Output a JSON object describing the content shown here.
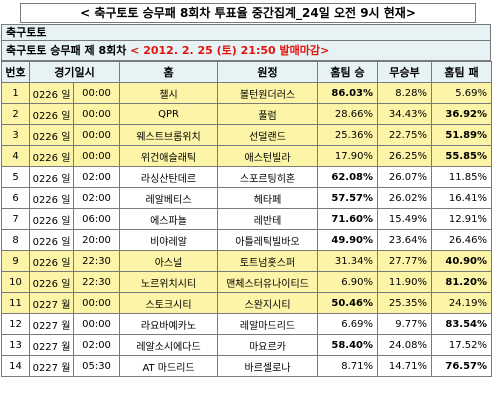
{
  "page": {
    "title": "< 축구토토 승무패 8회차 투표율 중간집계_24일 오전 9시 현재>",
    "section": "축구토토",
    "subheader_prefix": "축구토토 승무패 제 8회차 ",
    "subheader_highlight": "< 2012. 2. 25 (토) 21:50 발매마감>"
  },
  "table": {
    "headers": [
      "번호",
      "경기일시",
      "홈",
      "원정",
      "홈팀 승",
      "무승부",
      "홈팀 패"
    ],
    "rows": [
      {
        "no": "1",
        "date": "0226 일",
        "time": "00:00",
        "home": "첼시",
        "away": "볼턴원더러스",
        "win": "86.03%",
        "draw": "8.28%",
        "lose": "5.69%",
        "highlight": true,
        "bold": "win"
      },
      {
        "no": "2",
        "date": "0226 일",
        "time": "00:00",
        "home": "QPR",
        "away": "풀럼",
        "win": "28.66%",
        "draw": "34.43%",
        "lose": "36.92%",
        "highlight": true,
        "bold": "lose"
      },
      {
        "no": "3",
        "date": "0226 일",
        "time": "00:00",
        "home": "웨스트브롬위치",
        "away": "선덜랜드",
        "win": "25.36%",
        "draw": "22.75%",
        "lose": "51.89%",
        "highlight": true,
        "bold": "lose"
      },
      {
        "no": "4",
        "date": "0226 일",
        "time": "00:00",
        "home": "위건애슬래틱",
        "away": "애스턴빌라",
        "win": "17.90%",
        "draw": "26.25%",
        "lose": "55.85%",
        "highlight": true,
        "bold": "lose"
      },
      {
        "no": "5",
        "date": "0226 일",
        "time": "02:00",
        "home": "라싱산탄데르",
        "away": "스포르팅히혼",
        "win": "62.08%",
        "draw": "26.07%",
        "lose": "11.85%",
        "highlight": false,
        "bold": "win"
      },
      {
        "no": "6",
        "date": "0226 일",
        "time": "02:00",
        "home": "레알베티스",
        "away": "헤타페",
        "win": "57.57%",
        "draw": "26.02%",
        "lose": "16.41%",
        "highlight": false,
        "bold": "win"
      },
      {
        "no": "7",
        "date": "0226 일",
        "time": "06:00",
        "home": "에스파뇰",
        "away": "레반테",
        "win": "71.60%",
        "draw": "15.49%",
        "lose": "12.91%",
        "highlight": false,
        "bold": "win"
      },
      {
        "no": "8",
        "date": "0226 일",
        "time": "20:00",
        "home": "비야레알",
        "away": "아틀레틱빌바오",
        "win": "49.90%",
        "draw": "23.64%",
        "lose": "26.46%",
        "highlight": false,
        "bold": "win"
      },
      {
        "no": "9",
        "date": "0226 일",
        "time": "22:30",
        "home": "아스널",
        "away": "토트넘홋스퍼",
        "win": "31.34%",
        "draw": "27.77%",
        "lose": "40.90%",
        "highlight": true,
        "bold": "lose"
      },
      {
        "no": "10",
        "date": "0226 일",
        "time": "22:30",
        "home": "노르위치시티",
        "away": "맨체스터유나이티드",
        "win": "6.90%",
        "draw": "11.90%",
        "lose": "81.20%",
        "highlight": true,
        "bold": "lose"
      },
      {
        "no": "11",
        "date": "0227 월",
        "time": "00:00",
        "home": "스토크시티",
        "away": "스완지시티",
        "win": "50.46%",
        "draw": "25.35%",
        "lose": "24.19%",
        "highlight": true,
        "bold": "win"
      },
      {
        "no": "12",
        "date": "0227 월",
        "time": "00:00",
        "home": "라요바예카노",
        "away": "레알마드리드",
        "win": "6.69%",
        "draw": "9.77%",
        "lose": "83.54%",
        "highlight": false,
        "bold": "lose"
      },
      {
        "no": "13",
        "date": "0227 월",
        "time": "02:00",
        "home": "레알소시에다드",
        "away": "마요르카",
        "win": "58.40%",
        "draw": "24.08%",
        "lose": "17.52%",
        "highlight": false,
        "bold": "win"
      },
      {
        "no": "14",
        "date": "0227 월",
        "time": "05:30",
        "home": "AT 마드리드",
        "away": "바르셀로나",
        "win": "8.71%",
        "draw": "14.71%",
        "lose": "76.57%",
        "highlight": false,
        "bold": "lose"
      }
    ]
  }
}
